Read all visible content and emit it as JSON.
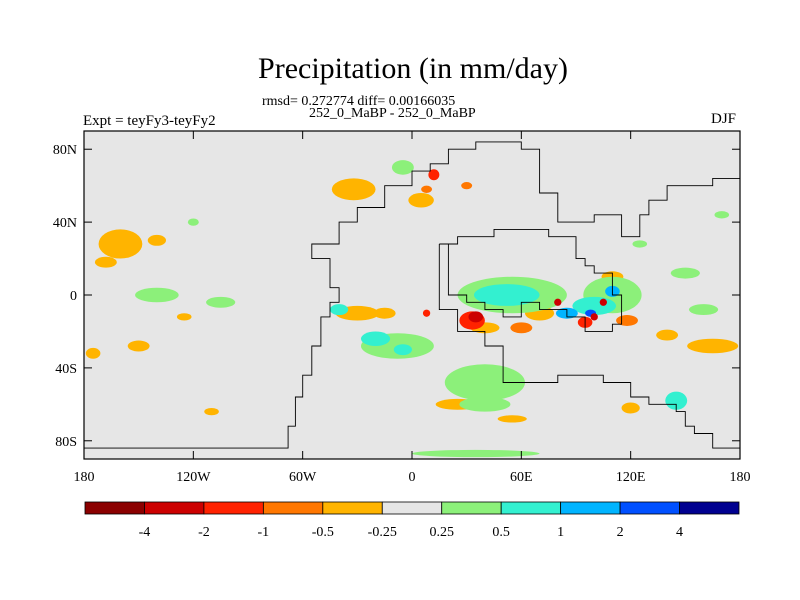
{
  "chart_data": {
    "type": "heatmap",
    "title": "Precipitation (in mm/day)",
    "subtitle": "rmsd= 0.272774 diff= 0.00166035",
    "run_label": "252_0_MaBP - 252_0_MaBP",
    "left_label": "Expt = teyFy3-teyFy2",
    "right_label": "DJF",
    "x_ticks": [
      "180",
      "120W",
      "60W",
      "0",
      "60E",
      "120E",
      "180"
    ],
    "x_tick_values": [
      -180,
      -120,
      -60,
      0,
      60,
      120,
      180
    ],
    "y_ticks": [
      "80N",
      "40N",
      "0",
      "40S",
      "80S"
    ],
    "y_tick_values": [
      80,
      40,
      0,
      -40,
      -80
    ],
    "xlim": [
      -180,
      180
    ],
    "ylim": [
      -90,
      90
    ],
    "background_color": "#e6e6e6",
    "colorbar": {
      "labels": [
        "-4",
        "-2",
        "-1",
        "-0.5",
        "-0.25",
        "0.25",
        "0.5",
        "1",
        "2",
        "4"
      ],
      "colors": [
        "#8b0000",
        "#cc0000",
        "#ff2200",
        "#ff7700",
        "#ffb400",
        "#e6e6e6",
        "#8cf07a",
        "#33f0d0",
        "#00b4ff",
        "#0050ff",
        "#000090"
      ]
    },
    "coastline": [
      [
        -180,
        -84
      ],
      [
        -68,
        -84
      ],
      [
        -68,
        -72
      ],
      [
        -64,
        -72
      ],
      [
        -64,
        -56
      ],
      [
        -60,
        -56
      ],
      [
        -60,
        -44
      ],
      [
        -55,
        -44
      ],
      [
        -55,
        -28
      ],
      [
        -50,
        -28
      ],
      [
        -50,
        -12
      ],
      [
        -45,
        -12
      ],
      [
        -45,
        -4
      ],
      [
        -40,
        -4
      ],
      [
        -40,
        4
      ],
      [
        -45,
        4
      ],
      [
        -45,
        20
      ],
      [
        -55,
        20
      ],
      [
        -55,
        28
      ],
      [
        -40,
        28
      ],
      [
        -40,
        40
      ],
      [
        -30,
        40
      ],
      [
        -30,
        48
      ],
      [
        -15,
        48
      ],
      [
        -15,
        60
      ],
      [
        0,
        60
      ],
      [
        0,
        68
      ],
      [
        10,
        68
      ],
      [
        10,
        72
      ],
      [
        20,
        72
      ],
      [
        20,
        80
      ],
      [
        35,
        80
      ],
      [
        35,
        84
      ],
      [
        60,
        84
      ],
      [
        60,
        80
      ],
      [
        70,
        80
      ],
      [
        70,
        56
      ],
      [
        80,
        56
      ],
      [
        80,
        40
      ],
      [
        100,
        40
      ],
      [
        100,
        44
      ],
      [
        115,
        44
      ],
      [
        115,
        32
      ],
      [
        125,
        32
      ],
      [
        125,
        44
      ],
      [
        130,
        44
      ],
      [
        130,
        52
      ],
      [
        140,
        52
      ],
      [
        140,
        60
      ],
      [
        165,
        60
      ],
      [
        165,
        64
      ],
      [
        180,
        64
      ]
    ],
    "coastline2": [
      [
        15,
        28
      ],
      [
        15,
        -8
      ],
      [
        25,
        -8
      ],
      [
        25,
        -20
      ],
      [
        40,
        -20
      ],
      [
        40,
        -28
      ],
      [
        50,
        -28
      ],
      [
        50,
        -48
      ],
      [
        80,
        -48
      ],
      [
        80,
        -44
      ],
      [
        105,
        -44
      ],
      [
        105,
        -48
      ],
      [
        120,
        -48
      ],
      [
        120,
        -56
      ],
      [
        130,
        -56
      ],
      [
        130,
        -60
      ],
      [
        145,
        -60
      ],
      [
        145,
        -64
      ],
      [
        150,
        -64
      ],
      [
        150,
        -72
      ],
      [
        155,
        -72
      ],
      [
        155,
        -76
      ],
      [
        165,
        -76
      ],
      [
        165,
        -84
      ],
      [
        180,
        -84
      ]
    ],
    "coastline3": [
      [
        15,
        28
      ],
      [
        25,
        28
      ],
      [
        25,
        32
      ],
      [
        45,
        32
      ],
      [
        45,
        36
      ],
      [
        75,
        36
      ],
      [
        75,
        32
      ],
      [
        90,
        32
      ],
      [
        90,
        20
      ],
      [
        95,
        20
      ],
      [
        95,
        16
      ],
      [
        100,
        16
      ],
      [
        100,
        12
      ],
      [
        110,
        12
      ],
      [
        110,
        0
      ],
      [
        115,
        0
      ],
      [
        115,
        -16
      ],
      [
        110,
        -16
      ],
      [
        110,
        -20
      ],
      [
        95,
        -20
      ],
      [
        95,
        -12
      ],
      [
        85,
        -12
      ],
      [
        85,
        -8
      ],
      [
        70,
        -8
      ],
      [
        70,
        -4
      ],
      [
        60,
        -4
      ],
      [
        60,
        -12
      ],
      [
        50,
        -12
      ],
      [
        50,
        -8
      ],
      [
        40,
        -8
      ],
      [
        40,
        -4
      ],
      [
        30,
        -4
      ],
      [
        30,
        0
      ],
      [
        20,
        0
      ],
      [
        20,
        28
      ]
    ],
    "coastline4": [
      [
        -180,
        -84
      ],
      [
        -180,
        -90
      ]
    ],
    "anomalies": [
      {
        "lon": -160,
        "lat": 28,
        "rx": 12,
        "ry": 8,
        "level": "-0.25"
      },
      {
        "lon": -168,
        "lat": 18,
        "rx": 6,
        "ry": 3,
        "level": "-0.25"
      },
      {
        "lon": -140,
        "lat": 30,
        "rx": 5,
        "ry": 3,
        "level": "-0.25"
      },
      {
        "lon": -32,
        "lat": 58,
        "rx": 12,
        "ry": 6,
        "level": "-0.25"
      },
      {
        "lon": 5,
        "lat": 52,
        "rx": 7,
        "ry": 4,
        "level": "-0.25"
      },
      {
        "lon": -30,
        "lat": -10,
        "rx": 12,
        "ry": 4,
        "level": "-0.25"
      },
      {
        "lon": -15,
        "lat": -10,
        "rx": 6,
        "ry": 3,
        "level": "-0.25"
      },
      {
        "lon": -150,
        "lat": -28,
        "rx": 6,
        "ry": 3,
        "level": "-0.25"
      },
      {
        "lon": -175,
        "lat": -32,
        "rx": 4,
        "ry": 3,
        "level": "-0.25"
      },
      {
        "lon": 165,
        "lat": -28,
        "rx": 14,
        "ry": 4,
        "level": "-0.25"
      },
      {
        "lon": 140,
        "lat": -22,
        "rx": 6,
        "ry": 3,
        "level": "-0.25"
      },
      {
        "lon": 40,
        "lat": -18,
        "rx": 8,
        "ry": 3,
        "level": "-0.25"
      },
      {
        "lon": 25,
        "lat": -60,
        "rx": 12,
        "ry": 3,
        "level": "-0.25"
      },
      {
        "lon": 55,
        "lat": -68,
        "rx": 8,
        "ry": 2,
        "level": "-0.25"
      },
      {
        "lon": 70,
        "lat": -10,
        "rx": 8,
        "ry": 4,
        "level": "-0.25"
      },
      {
        "lon": 110,
        "lat": 10,
        "rx": 6,
        "ry": 3,
        "level": "-0.25"
      },
      {
        "lon": -110,
        "lat": -64,
        "rx": 4,
        "ry": 2,
        "level": "-0.25"
      },
      {
        "lon": -125,
        "lat": -12,
        "rx": 4,
        "ry": 2,
        "level": "-0.25"
      },
      {
        "lon": 120,
        "lat": -62,
        "rx": 5,
        "ry": 3,
        "level": "-0.25"
      },
      {
        "lon": 33,
        "lat": -14,
        "rx": 7,
        "ry": 5,
        "level": "-1"
      },
      {
        "lon": 35,
        "lat": -12,
        "rx": 4,
        "ry": 3,
        "level": "-2"
      },
      {
        "lon": 118,
        "lat": -14,
        "rx": 6,
        "ry": 3,
        "level": "-0.5"
      },
      {
        "lon": 60,
        "lat": -18,
        "rx": 6,
        "ry": 3,
        "level": "-0.5"
      },
      {
        "lon": 95,
        "lat": -15,
        "rx": 4,
        "ry": 3,
        "level": "-1"
      },
      {
        "lon": -140,
        "lat": 0,
        "rx": 12,
        "ry": 4,
        "level": "0.25"
      },
      {
        "lon": -105,
        "lat": -4,
        "rx": 8,
        "ry": 3,
        "level": "0.25"
      },
      {
        "lon": -8,
        "lat": -28,
        "rx": 20,
        "ry": 7,
        "level": "0.25"
      },
      {
        "lon": -20,
        "lat": -24,
        "rx": 8,
        "ry": 4,
        "level": "0.5"
      },
      {
        "lon": 40,
        "lat": -48,
        "rx": 22,
        "ry": 10,
        "level": "0.25"
      },
      {
        "lon": 40,
        "lat": -60,
        "rx": 14,
        "ry": 4,
        "level": "0.25"
      },
      {
        "lon": 35,
        "lat": -87,
        "rx": 35,
        "ry": 2,
        "level": "0.25"
      },
      {
        "lon": 55,
        "lat": 0,
        "rx": 30,
        "ry": 10,
        "level": "0.25"
      },
      {
        "lon": 52,
        "lat": 0,
        "rx": 18,
        "ry": 6,
        "level": "0.5"
      },
      {
        "lon": 110,
        "lat": 0,
        "rx": 16,
        "ry": 10,
        "level": "0.25"
      },
      {
        "lon": 100,
        "lat": -6,
        "rx": 12,
        "ry": 5,
        "level": "0.5"
      },
      {
        "lon": 85,
        "lat": -10,
        "rx": 6,
        "ry": 3,
        "level": "1"
      },
      {
        "lon": 110,
        "lat": 2,
        "rx": 4,
        "ry": 3,
        "level": "1"
      },
      {
        "lon": 98,
        "lat": -10,
        "rx": 3,
        "ry": 2,
        "level": "2"
      },
      {
        "lon": 150,
        "lat": 12,
        "rx": 8,
        "ry": 3,
        "level": "0.25"
      },
      {
        "lon": -5,
        "lat": 70,
        "rx": 6,
        "ry": 4,
        "level": "0.25"
      },
      {
        "lon": 145,
        "lat": -58,
        "rx": 6,
        "ry": 5,
        "level": "0.5"
      },
      {
        "lon": 160,
        "lat": -8,
        "rx": 8,
        "ry": 3,
        "level": "0.25"
      },
      {
        "lon": -120,
        "lat": 40,
        "rx": 3,
        "ry": 2,
        "level": "0.25"
      },
      {
        "lon": 170,
        "lat": 44,
        "rx": 4,
        "ry": 2,
        "level": "0.25"
      },
      {
        "lon": 125,
        "lat": 28,
        "rx": 4,
        "ry": 2,
        "level": "0.25"
      },
      {
        "lon": -40,
        "lat": -8,
        "rx": 5,
        "ry": 3,
        "level": "0.5"
      },
      {
        "lon": -5,
        "lat": -30,
        "rx": 5,
        "ry": 3,
        "level": "0.5"
      },
      {
        "lon": 12,
        "lat": 66,
        "rx": 3,
        "ry": 3,
        "level": "-1"
      },
      {
        "lon": 8,
        "lat": 58,
        "rx": 3,
        "ry": 2,
        "level": "-0.5"
      },
      {
        "lon": 30,
        "lat": 60,
        "rx": 3,
        "ry": 2,
        "level": "-0.5"
      },
      {
        "lon": 8,
        "lat": -10,
        "rx": 2,
        "ry": 2,
        "level": "-1"
      },
      {
        "lon": 100,
        "lat": -12,
        "rx": 2,
        "ry": 2,
        "level": "-2"
      },
      {
        "lon": 105,
        "lat": -4,
        "rx": 2,
        "ry": 2,
        "level": "-2"
      },
      {
        "lon": 80,
        "lat": -4,
        "rx": 2,
        "ry": 2,
        "level": "-2"
      }
    ]
  }
}
